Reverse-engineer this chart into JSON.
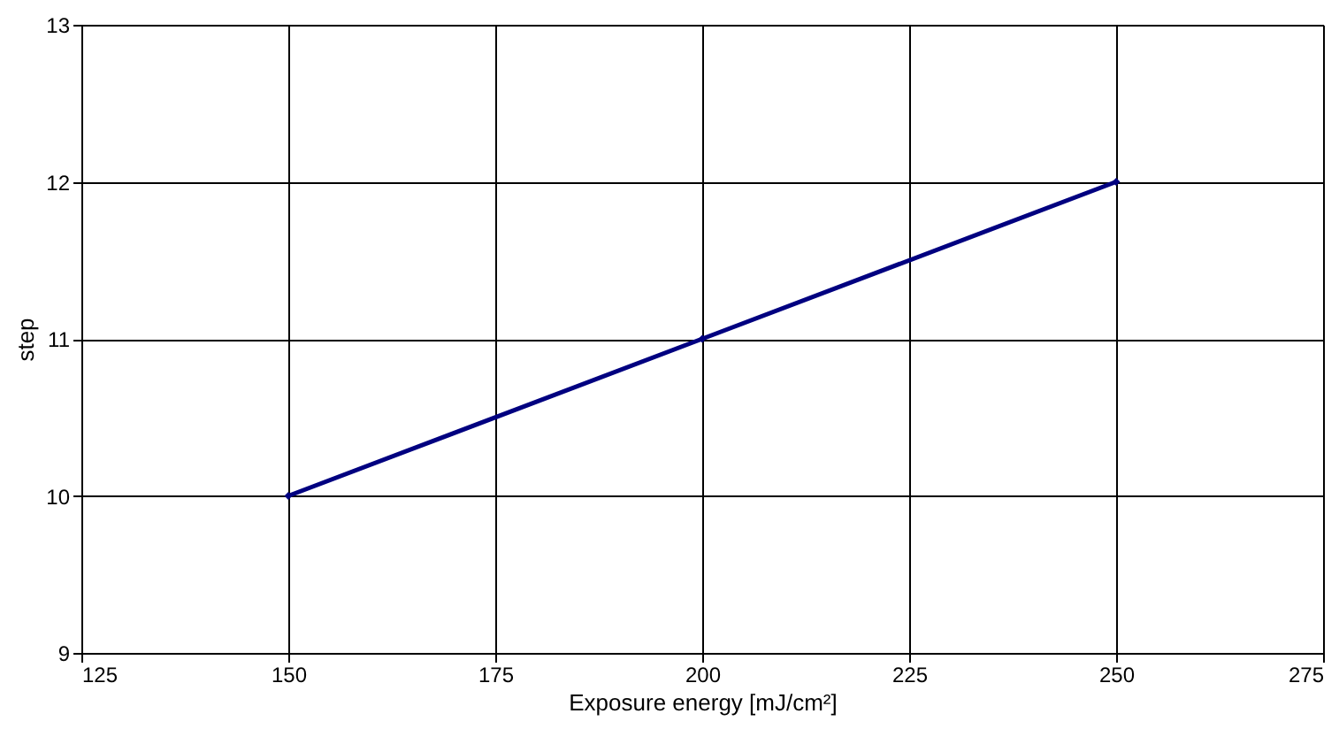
{
  "chart_data": {
    "type": "line",
    "xlabel": "Exposure energy [mJ/cm²]",
    "ylabel": "step",
    "x": [
      150,
      200,
      250
    ],
    "series": [
      {
        "color": "#000080",
        "values": [
          10,
          11,
          12
        ]
      }
    ],
    "xlim": [
      125,
      275
    ],
    "xticks": [
      125,
      150,
      175,
      200,
      225,
      250,
      275
    ],
    "ylim": [
      9,
      13
    ],
    "yticks": [
      9,
      10,
      11,
      12,
      13
    ],
    "grid": true,
    "marker": "diamond",
    "line_style": "solid"
  }
}
